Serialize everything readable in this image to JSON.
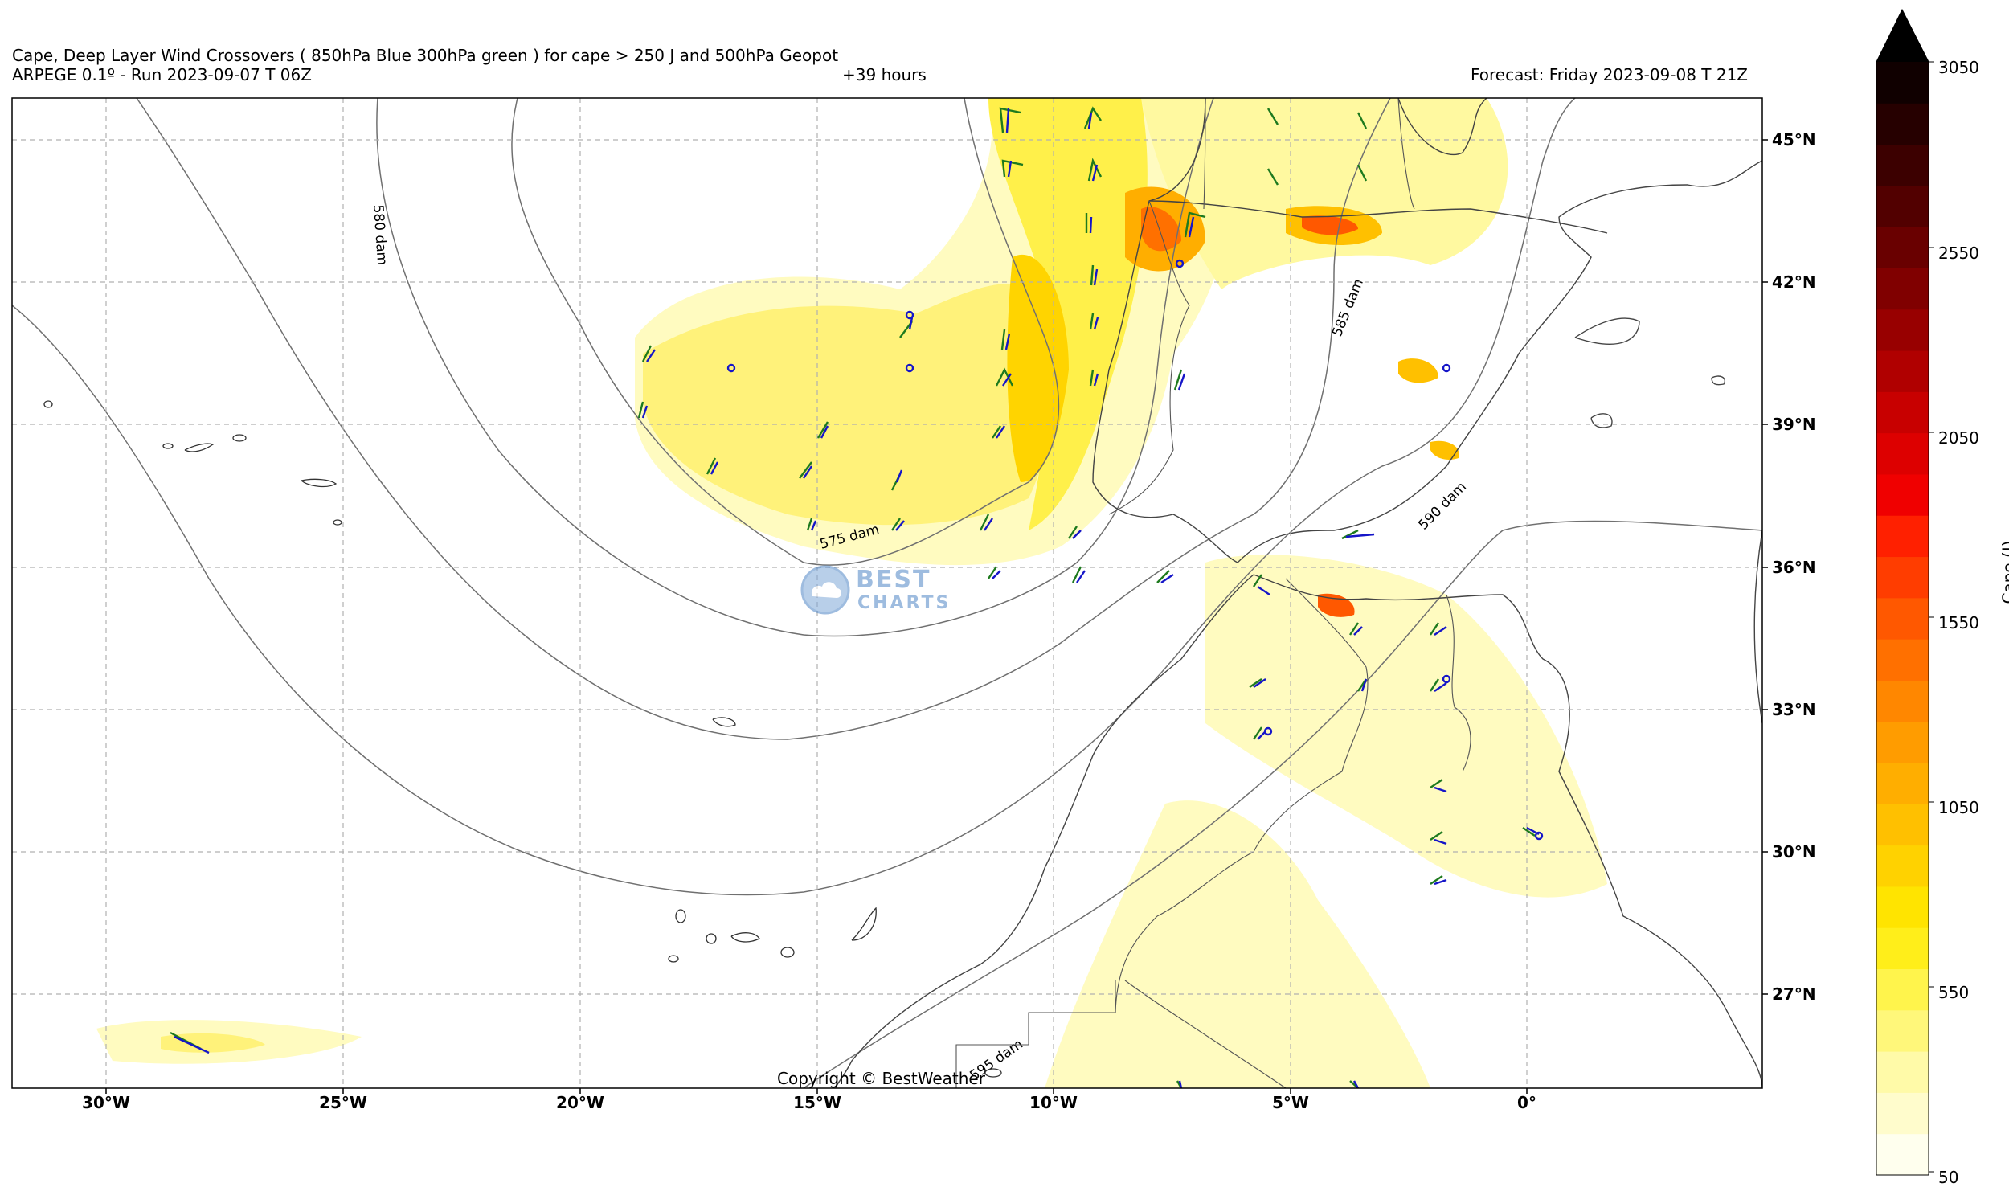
{
  "header": {
    "title": "Cape, Deep Layer Wind Crossovers ( 850hPa Blue 300hPa green ) for cape > 250 J and 500hPa Geopot",
    "model_run": "ARPEGE 0.1º - Run 2023-09-07 T 06Z",
    "lead_time": "+39 hours",
    "forecast": "Forecast: Friday 2023-09-08 T 21Z"
  },
  "map": {
    "lat_labels": [
      "45°N",
      "42°N",
      "39°N",
      "36°N",
      "33°N",
      "30°N",
      "27°N"
    ],
    "lon_labels": [
      "30°W",
      "25°W",
      "20°W",
      "15°W",
      "10°W",
      "5°W",
      "0°"
    ],
    "contour_labels": [
      "580 dam",
      "575 dam",
      "585 dam",
      "590 dam",
      "595 dam"
    ],
    "copyright": "Copyright © BestWeather",
    "logo_line1": "BEST",
    "logo_line2": "CHARTS"
  },
  "colorbar": {
    "title": "Cape (J)",
    "tick_labels": [
      "3050",
      "2550",
      "2050",
      "1550",
      "1050",
      "550",
      "50"
    ],
    "colors": [
      "#ffffee",
      "#fffccc",
      "#fffaa8",
      "#fff77a",
      "#fff44c",
      "#ffee1a",
      "#ffe400",
      "#ffd200",
      "#ffc000",
      "#ffae00",
      "#ff9c00",
      "#ff8700",
      "#ff7000",
      "#ff5800",
      "#ff3d00",
      "#ff2000",
      "#f00000",
      "#dd0000",
      "#c80000",
      "#b00000",
      "#980000",
      "#800000",
      "#690000",
      "#520000",
      "#3c0000",
      "#260000",
      "#100000"
    ],
    "extend_color": "#000000"
  }
}
